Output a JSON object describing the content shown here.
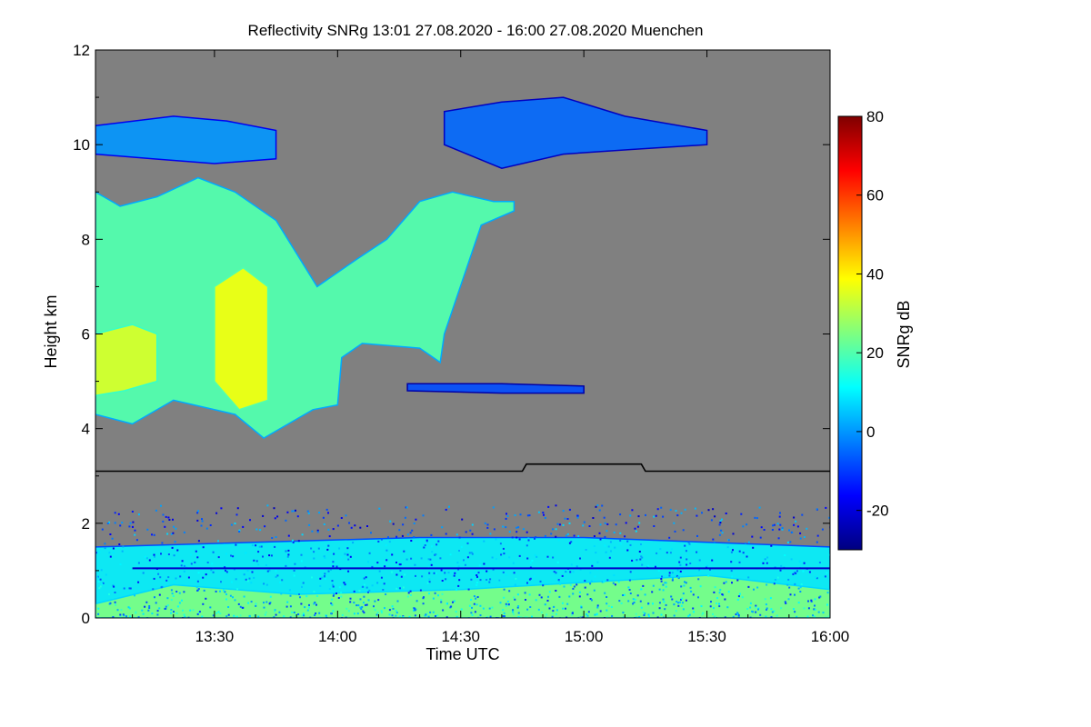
{
  "chart_data": {
    "type": "heatmap",
    "title": "Reflectivity SNRg   13:01 27.08.2020 - 16:00 27.08.2020 Muenchen",
    "xlabel": "Time UTC",
    "ylabel": "Height km",
    "xlim_minutes_utc": [
      781,
      960
    ],
    "ylim": [
      0,
      12
    ],
    "x_ticks": [
      {
        "value": 810,
        "label": "13:30"
      },
      {
        "value": 840,
        "label": "14:00"
      },
      {
        "value": 870,
        "label": "14:30"
      },
      {
        "value": 900,
        "label": "15:00"
      },
      {
        "value": 930,
        "label": "15:30"
      },
      {
        "value": 960,
        "label": "16:00"
      }
    ],
    "y_ticks": [
      {
        "value": 0,
        "label": "0"
      },
      {
        "value": 2,
        "label": "2"
      },
      {
        "value": 4,
        "label": "4"
      },
      {
        "value": 6,
        "label": "6"
      },
      {
        "value": 8,
        "label": "8"
      },
      {
        "value": 10,
        "label": "10"
      },
      {
        "value": 12,
        "label": "12"
      }
    ],
    "colorbar": {
      "label": "SNRg dB",
      "range": [
        -30,
        80
      ],
      "ticks": [
        {
          "value": -20,
          "label": "-20"
        },
        {
          "value": 0,
          "label": "0"
        },
        {
          "value": 20,
          "label": "20"
        },
        {
          "value": 40,
          "label": "40"
        },
        {
          "value": 60,
          "label": "60"
        },
        {
          "value": 80,
          "label": "80"
        }
      ],
      "colors": [
        "#00007f",
        "#0000ff",
        "#007fff",
        "#00ffff",
        "#7fff7f",
        "#ffff00",
        "#ff7f00",
        "#ff0000",
        "#7f0000"
      ]
    },
    "background_color": "#808080",
    "line_series": {
      "name": "reference height",
      "points": [
        [
          781,
          3.1
        ],
        [
          885,
          3.1
        ],
        [
          886,
          3.25
        ],
        [
          914,
          3.25
        ],
        [
          915,
          3.1
        ],
        [
          960,
          3.1
        ]
      ]
    },
    "regions": [
      {
        "name": "main-cloud",
        "sample_value": 20,
        "top": [
          [
            781,
            9.0
          ],
          [
            787,
            8.7
          ],
          [
            796,
            8.9
          ],
          [
            806,
            9.3
          ],
          [
            815,
            9.0
          ],
          [
            825,
            8.4
          ],
          [
            835,
            7.0
          ],
          [
            845,
            7.6
          ],
          [
            852,
            8.0
          ],
          [
            860,
            8.8
          ],
          [
            868,
            9.0
          ],
          [
            878,
            8.8
          ],
          [
            883,
            8.8
          ]
        ],
        "bottom": [
          [
            883,
            8.6
          ],
          [
            875,
            8.3
          ],
          [
            866,
            6.0
          ],
          [
            865,
            5.4
          ],
          [
            860,
            5.7
          ],
          [
            846,
            5.8
          ],
          [
            841,
            5.5
          ],
          [
            840,
            4.5
          ],
          [
            834,
            4.4
          ],
          [
            822,
            3.8
          ],
          [
            815,
            4.3
          ],
          [
            800,
            4.6
          ],
          [
            790,
            4.1
          ],
          [
            781,
            4.3
          ]
        ]
      },
      {
        "name": "core-left",
        "sample_value": 35,
        "top": [
          [
            781,
            6.0
          ],
          [
            790,
            6.2
          ],
          [
            796,
            6.0
          ]
        ],
        "bottom": [
          [
            796,
            5.0
          ],
          [
            788,
            4.8
          ],
          [
            781,
            4.7
          ]
        ]
      },
      {
        "name": "core-mid",
        "sample_value": 38,
        "top": [
          [
            810,
            7.0
          ],
          [
            817,
            7.4
          ],
          [
            823,
            7.0
          ]
        ],
        "bottom": [
          [
            823,
            4.6
          ],
          [
            816,
            4.4
          ],
          [
            810,
            5.0
          ]
        ]
      },
      {
        "name": "cirrus-band-upper-left",
        "sample_value": 0,
        "top": [
          [
            781,
            10.4
          ],
          [
            800,
            10.6
          ],
          [
            813,
            10.5
          ],
          [
            825,
            10.3
          ]
        ],
        "bottom": [
          [
            825,
            9.7
          ],
          [
            810,
            9.6
          ],
          [
            795,
            9.7
          ],
          [
            781,
            9.8
          ]
        ]
      },
      {
        "name": "cirrus-band-upper-right",
        "sample_value": -5,
        "top": [
          [
            866,
            10.7
          ],
          [
            880,
            10.9
          ],
          [
            895,
            11.0
          ],
          [
            910,
            10.6
          ],
          [
            930,
            10.3
          ]
        ],
        "bottom": [
          [
            930,
            10.0
          ],
          [
            912,
            9.9
          ],
          [
            895,
            9.8
          ],
          [
            880,
            9.5
          ],
          [
            866,
            10.0
          ]
        ]
      },
      {
        "name": "mid-level-streak",
        "sample_value": -8,
        "top": [
          [
            857,
            4.95
          ],
          [
            880,
            4.95
          ],
          [
            900,
            4.9
          ]
        ],
        "bottom": [
          [
            900,
            4.75
          ],
          [
            880,
            4.75
          ],
          [
            857,
            4.8
          ]
        ]
      },
      {
        "name": "boundary-layer",
        "sample_value": 10,
        "top": [
          [
            781,
            1.5
          ],
          [
            820,
            1.6
          ],
          [
            860,
            1.7
          ],
          [
            900,
            1.7
          ],
          [
            960,
            1.5
          ]
        ],
        "bottom": [
          [
            960,
            0.0
          ],
          [
            781,
            0.0
          ]
        ]
      },
      {
        "name": "boundary-layer-strong",
        "sample_value": 25,
        "top": [
          [
            781,
            0.3
          ],
          [
            800,
            0.7
          ],
          [
            830,
            0.5
          ],
          [
            870,
            0.6
          ],
          [
            930,
            0.9
          ],
          [
            960,
            0.6
          ]
        ],
        "bottom": [
          [
            960,
            0.0
          ],
          [
            781,
            0.0
          ]
        ]
      }
    ]
  }
}
